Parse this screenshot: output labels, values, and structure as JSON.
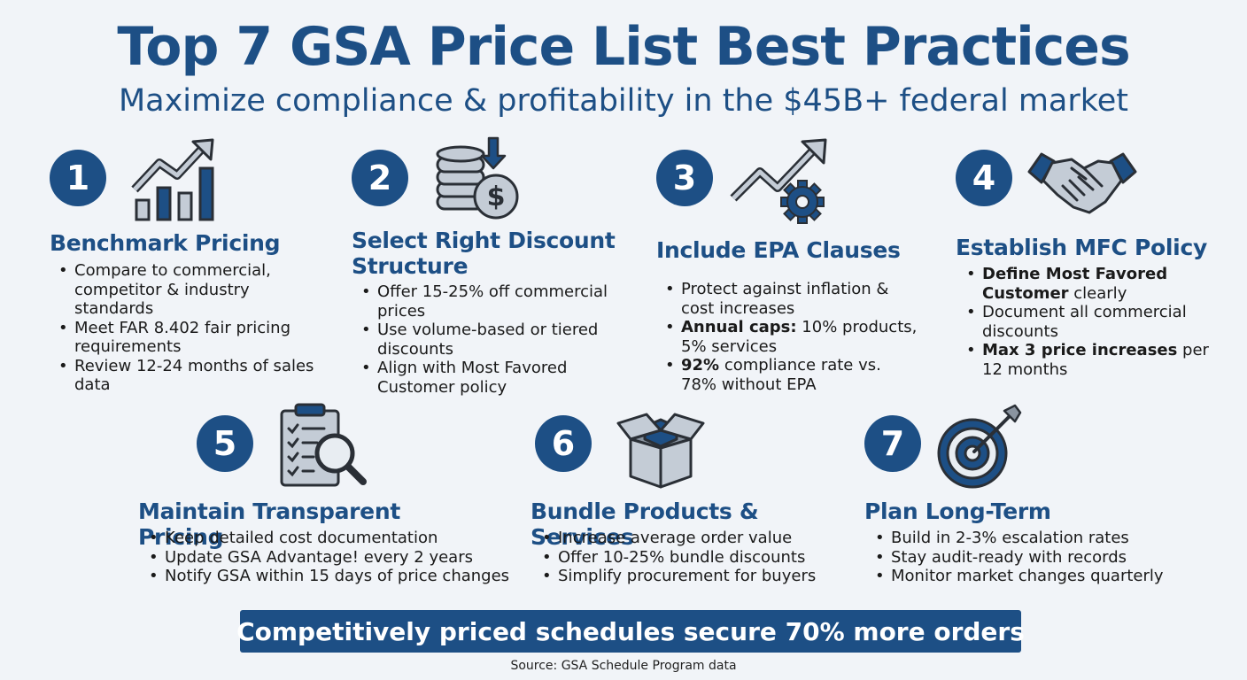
{
  "title": "Top 7 GSA Price List Best Practices",
  "subtitle": "Maximize compliance & profitability in the $45B+ federal market",
  "practices": [
    {
      "number": "1",
      "icon": "bar-chart-growth-icon",
      "title": "Benchmark Pricing",
      "bullets": [
        {
          "bold": "",
          "text": "Compare to commercial, competitor & industry standards"
        },
        {
          "bold": "",
          "text": "Meet FAR 8.402 fair pricing requirements"
        },
        {
          "bold": "",
          "text": "Review 12-24 months of sales data"
        }
      ]
    },
    {
      "number": "2",
      "icon": "coins-dollar-icon",
      "title": "Select Right Discount Structure",
      "bullets": [
        {
          "bold": "",
          "text": "Offer 15-25% off commercial prices"
        },
        {
          "bold": "",
          "text": "Use volume-based or tiered discounts"
        },
        {
          "bold": "",
          "text": "Align with Most Favored Customer policy"
        }
      ]
    },
    {
      "number": "3",
      "icon": "trend-gear-icon",
      "title": "Include EPA Clauses",
      "bullets": [
        {
          "bold": "",
          "text": "Protect against inflation & cost increases"
        },
        {
          "bold": "Annual caps:",
          "text": " 10% products, 5% services"
        },
        {
          "bold": "92%",
          "text": " compliance rate vs. 78% without EPA"
        }
      ]
    },
    {
      "number": "4",
      "icon": "handshake-icon",
      "title": "Establish MFC Policy",
      "bullets": [
        {
          "bold": "Define Most Favored Customer",
          "text": " clearly"
        },
        {
          "bold": "",
          "text": "Document all commercial discounts"
        },
        {
          "bold": "Max 3 price increases",
          "text": " per 12 months"
        }
      ]
    },
    {
      "number": "5",
      "icon": "clipboard-magnifier-icon",
      "title": "Maintain Transparent Pricing",
      "bullets": [
        {
          "bold": "",
          "text": "Keep detailed cost documentation"
        },
        {
          "bold": "",
          "text": "Update GSA Advantage! every 2 years"
        },
        {
          "bold": "",
          "text": "Notify GSA within 15 days of price changes"
        }
      ]
    },
    {
      "number": "6",
      "icon": "open-box-icon",
      "title": "Bundle Products & Services",
      "bullets": [
        {
          "bold": "",
          "text": "Increase average order value"
        },
        {
          "bold": "",
          "text": "Offer 10-25% bundle discounts"
        },
        {
          "bold": "",
          "text": "Simplify procurement for buyers"
        }
      ]
    },
    {
      "number": "7",
      "icon": "target-arrow-icon",
      "title": "Plan Long-Term",
      "bullets": [
        {
          "bold": "",
          "text": "Build in 2-3% escalation rates"
        },
        {
          "bold": "",
          "text": "Stay audit-ready with records"
        },
        {
          "bold": "",
          "text": "Monitor market changes quarterly"
        }
      ]
    }
  ],
  "banner": "Competitively priced schedules secure 70% more orders",
  "source": "Source: GSA Schedule Program data",
  "colors": {
    "primary": "#1d4f85",
    "background": "#f1f4f8",
    "icon_gray": "#c4ccd6"
  }
}
